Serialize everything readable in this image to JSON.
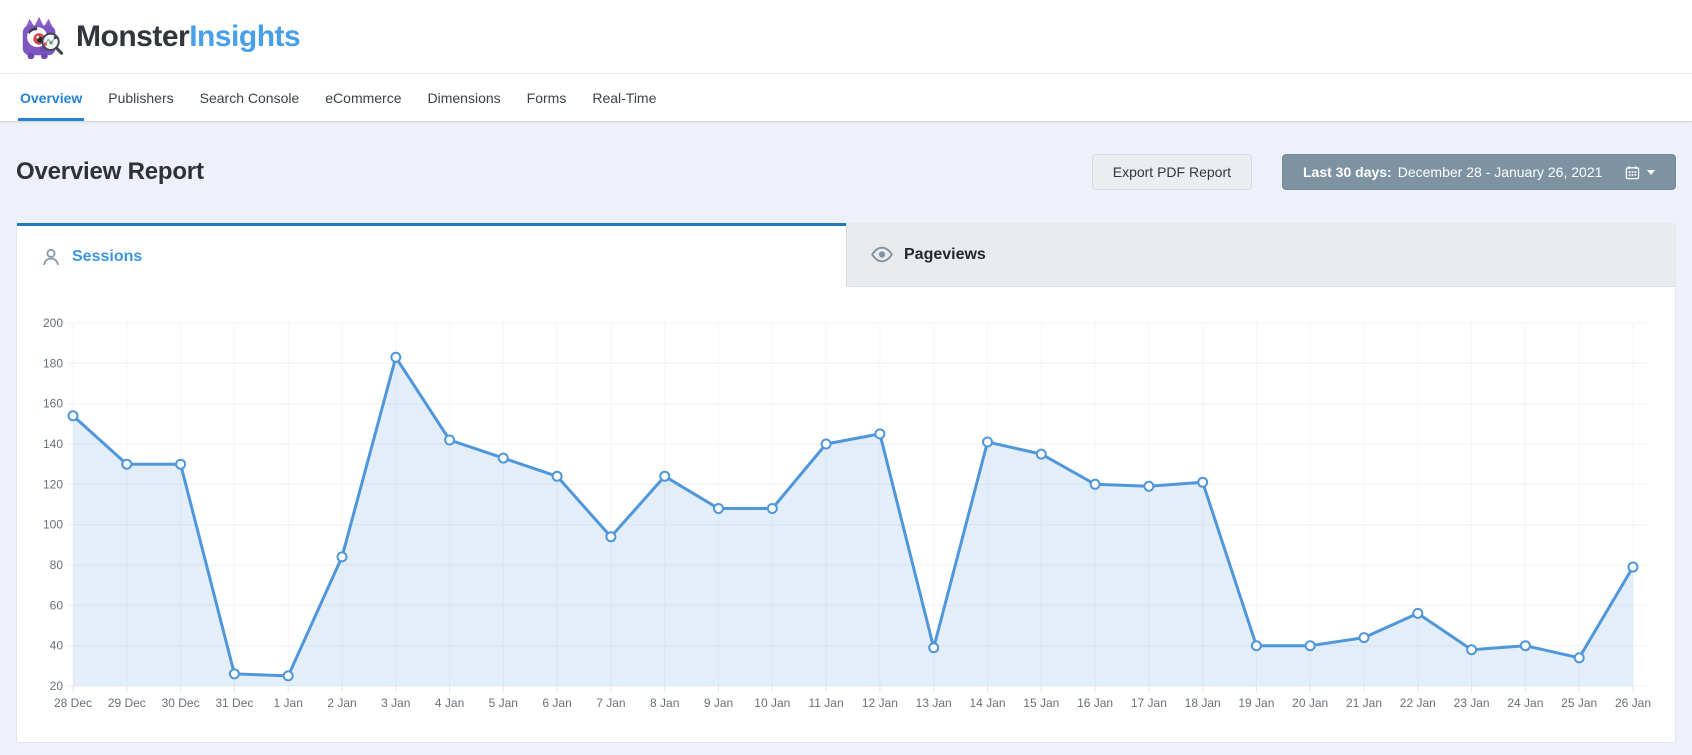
{
  "brand": {
    "name_primary": "Monster",
    "name_secondary": "Insights",
    "logo_icon": "monster-mascot-icon",
    "accent_blue": "#47a0e9"
  },
  "nav": {
    "items": [
      {
        "label": "Overview",
        "active": true
      },
      {
        "label": "Publishers",
        "active": false
      },
      {
        "label": "Search Console",
        "active": false
      },
      {
        "label": "eCommerce",
        "active": false
      },
      {
        "label": "Dimensions",
        "active": false
      },
      {
        "label": "Forms",
        "active": false
      },
      {
        "label": "Real-Time",
        "active": false
      }
    ]
  },
  "report": {
    "title": "Overview Report",
    "export_button_label": "Export PDF Report",
    "date_range": {
      "prefix": "Last 30 days:",
      "range": "December 28 - January 26, 2021",
      "icon": "calendar-icon",
      "button_color": "#7e93a2"
    }
  },
  "tabs": [
    {
      "label": "Sessions",
      "icon": "person-icon",
      "active": true
    },
    {
      "label": "Pageviews",
      "icon": "eye-icon",
      "active": false
    }
  ],
  "chart_data": {
    "type": "line",
    "series_name": "Sessions",
    "x": [
      "28 Dec",
      "29 Dec",
      "30 Dec",
      "31 Dec",
      "1 Jan",
      "2 Jan",
      "3 Jan",
      "4 Jan",
      "5 Jan",
      "6 Jan",
      "7 Jan",
      "8 Jan",
      "9 Jan",
      "10 Jan",
      "11 Jan",
      "12 Jan",
      "13 Jan",
      "14 Jan",
      "15 Jan",
      "16 Jan",
      "17 Jan",
      "18 Jan",
      "19 Jan",
      "20 Jan",
      "21 Jan",
      "22 Jan",
      "23 Jan",
      "24 Jan",
      "25 Jan",
      "26 Jan"
    ],
    "values": [
      154,
      130,
      130,
      26,
      25,
      84,
      183,
      142,
      133,
      124,
      94,
      124,
      108,
      108,
      140,
      145,
      39,
      141,
      135,
      120,
      119,
      121,
      40,
      40,
      44,
      56,
      38,
      40,
      34,
      79
    ],
    "ylim": [
      20,
      200
    ],
    "ytick_step": 20,
    "grid": true,
    "legend": "none",
    "line_color": "#4f97da",
    "point_fill": "#ffffff",
    "area_fill": "rgba(79,151,218,0.16)",
    "title": "",
    "xlabel": "",
    "ylabel": ""
  }
}
